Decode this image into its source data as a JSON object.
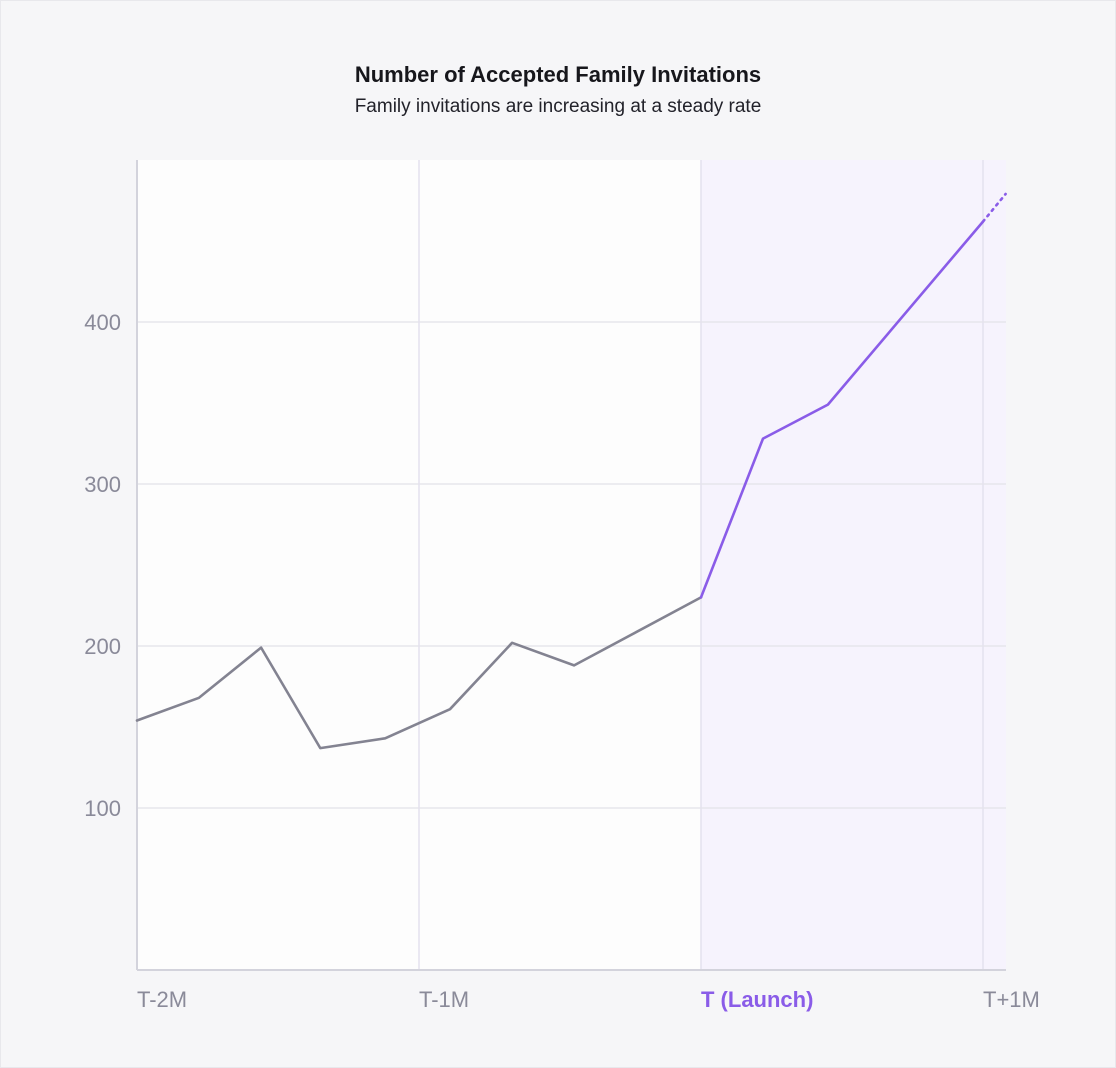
{
  "chart_data": {
    "type": "line",
    "title": "Number of Accepted Family Invitations",
    "subtitle": "Family invitations are increasing at a steady rate",
    "xlabel": "",
    "ylabel": "",
    "ylim": [
      0,
      500
    ],
    "y_ticks": [
      100,
      200,
      300,
      400
    ],
    "x_ticks": [
      {
        "label": "T-2M",
        "x": 0,
        "highlight": false
      },
      {
        "label": "T-1M",
        "x": 1,
        "highlight": false
      },
      {
        "label": "T (Launch)",
        "x": 2,
        "highlight": true
      },
      {
        "label": "T+1M",
        "x": 3,
        "highlight": false
      }
    ],
    "xlim": [
      0,
      3.08
    ],
    "highlight_region": {
      "from": 2,
      "to": 3.08,
      "color": "#f6f3fd"
    },
    "grid": true,
    "series": [
      {
        "segment": "pre-launch",
        "color": "#838391",
        "points": [
          {
            "x": 0.0,
            "y": 154
          },
          {
            "x": 0.22,
            "y": 168
          },
          {
            "x": 0.44,
            "y": 199
          },
          {
            "x": 0.65,
            "y": 137
          },
          {
            "x": 0.88,
            "y": 143
          },
          {
            "x": 1.11,
            "y": 161
          },
          {
            "x": 1.33,
            "y": 202
          },
          {
            "x": 1.55,
            "y": 188
          },
          {
            "x": 2.0,
            "y": 230
          }
        ]
      },
      {
        "segment": "post-launch",
        "color": "#8a5ce8",
        "points": [
          {
            "x": 2.0,
            "y": 230
          },
          {
            "x": 2.22,
            "y": 328
          },
          {
            "x": 2.45,
            "y": 349
          },
          {
            "x": 3.0,
            "y": 462
          }
        ]
      },
      {
        "segment": "projection",
        "color": "#8a5ce8",
        "dashed": true,
        "points": [
          {
            "x": 3.0,
            "y": 462
          },
          {
            "x": 3.08,
            "y": 479
          }
        ]
      }
    ]
  }
}
